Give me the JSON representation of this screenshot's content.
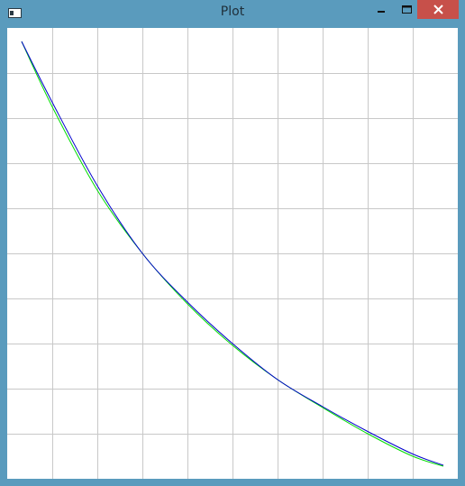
{
  "window": {
    "title": "Plot"
  },
  "icons": {
    "app": "app-window-icon",
    "minimize": "minimize-icon",
    "maximize": "maximize-icon",
    "close": "close-icon"
  },
  "colors": {
    "frame": "#5a9bbd",
    "close_button": "#c7504a",
    "grid": "#c8c8c8",
    "series_1": "#0000cc",
    "series_2": "#00dd00"
  },
  "chart_data": {
    "type": "line",
    "title": "",
    "xlabel": "",
    "ylabel": "",
    "grid": true,
    "legend": "none",
    "xlim": [
      0,
      10
    ],
    "ylim": [
      0,
      10
    ],
    "x_gridlines": [
      1,
      2,
      3,
      4,
      5,
      6,
      7,
      8,
      9
    ],
    "y_gridlines": [
      1,
      2,
      3,
      4,
      5,
      6,
      7,
      8,
      9
    ],
    "series": [
      {
        "color": "#0000cc",
        "x": [
          0.32,
          1.0,
          2.0,
          3.0,
          4.0,
          5.0,
          6.0,
          7.0,
          8.0,
          9.0,
          9.68
        ],
        "y": [
          9.7,
          8.35,
          6.5,
          5.0,
          3.92,
          3.0,
          2.2,
          1.6,
          1.05,
          0.55,
          0.3
        ]
      },
      {
        "color": "#00dd00",
        "x": [
          0.32,
          1.0,
          2.0,
          3.0,
          4.0,
          5.0,
          6.0,
          7.0,
          8.0,
          9.0,
          9.68
        ],
        "y": [
          9.7,
          8.25,
          6.4,
          5.0,
          3.88,
          2.96,
          2.2,
          1.58,
          1.0,
          0.5,
          0.28
        ]
      }
    ]
  }
}
